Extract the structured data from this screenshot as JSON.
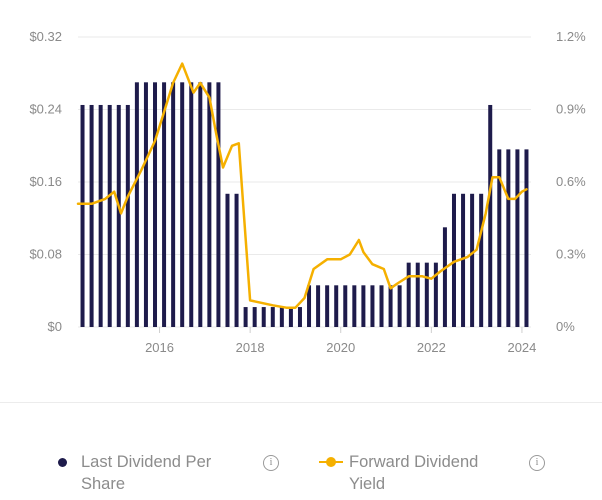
{
  "chart_data": {
    "type": "bar+line",
    "x_ticks": [
      "2016",
      "2018",
      "2020",
      "2022",
      "2024"
    ],
    "y_left_ticks": [
      "$0",
      "$0.08",
      "$0.16",
      "$0.24",
      "$0.32"
    ],
    "y_right_ticks": [
      "0%",
      "0.3%",
      "0.6%",
      "0.9%",
      "1.2%"
    ],
    "ylim_left": [
      0,
      0.32
    ],
    "ylim_right": [
      0,
      1.2
    ],
    "xlim": [
      2014.2,
      2024.2
    ],
    "grid": "horizontal",
    "legend_position": "bottom",
    "series": [
      {
        "name": "Last Dividend Per Share",
        "type": "bar",
        "color": "#1e1b4b",
        "x": [
          2014.3,
          2014.5,
          2014.7,
          2014.9,
          2015.1,
          2015.3,
          2015.5,
          2015.7,
          2015.9,
          2016.1,
          2016.3,
          2016.5,
          2016.7,
          2016.9,
          2017.1,
          2017.3,
          2017.5,
          2017.7,
          2017.9,
          2018.1,
          2018.3,
          2018.5,
          2018.7,
          2018.9,
          2019.1,
          2019.3,
          2019.5,
          2019.7,
          2019.9,
          2020.1,
          2020.3,
          2020.5,
          2020.7,
          2020.9,
          2021.1,
          2021.3,
          2021.5,
          2021.7,
          2021.9,
          2022.1,
          2022.3,
          2022.5,
          2022.7,
          2022.9,
          2023.1,
          2023.3,
          2023.5,
          2023.7,
          2023.9,
          2024.1
        ],
        "values": [
          0.245,
          0.245,
          0.245,
          0.245,
          0.245,
          0.245,
          0.27,
          0.27,
          0.27,
          0.27,
          0.27,
          0.27,
          0.27,
          0.27,
          0.27,
          0.27,
          0.147,
          0.147,
          0.022,
          0.022,
          0.022,
          0.022,
          0.022,
          0.022,
          0.022,
          0.046,
          0.046,
          0.046,
          0.046,
          0.046,
          0.046,
          0.046,
          0.046,
          0.046,
          0.046,
          0.046,
          0.071,
          0.071,
          0.071,
          0.071,
          0.11,
          0.147,
          0.147,
          0.147,
          0.147,
          0.245,
          0.196,
          0.196,
          0.196,
          0.196
        ]
      },
      {
        "name": "Forward Dividend Yield",
        "type": "line",
        "color": "#f5b000",
        "x": [
          2014.2,
          2014.5,
          2014.8,
          2015.0,
          2015.15,
          2015.3,
          2015.6,
          2015.9,
          2016.1,
          2016.3,
          2016.5,
          2016.75,
          2016.9,
          2017.1,
          2017.25,
          2017.4,
          2017.6,
          2017.75,
          2017.85,
          2018.0,
          2018.5,
          2018.8,
          2019.0,
          2019.2,
          2019.4,
          2019.7,
          2020.0,
          2020.2,
          2020.4,
          2020.5,
          2020.7,
          2020.95,
          2021.1,
          2021.25,
          2021.5,
          2021.8,
          2022.0,
          2022.2,
          2022.5,
          2022.8,
          2023.0,
          2023.2,
          2023.35,
          2023.5,
          2023.7,
          2023.85,
          2024.0,
          2024.1
        ],
        "values": [
          0.51,
          0.51,
          0.53,
          0.56,
          0.47,
          0.54,
          0.65,
          0.77,
          0.89,
          1.01,
          1.09,
          0.97,
          1.01,
          0.95,
          0.8,
          0.66,
          0.75,
          0.76,
          0.5,
          0.11,
          0.09,
          0.08,
          0.08,
          0.12,
          0.24,
          0.28,
          0.28,
          0.3,
          0.36,
          0.31,
          0.26,
          0.24,
          0.16,
          0.18,
          0.21,
          0.21,
          0.2,
          0.23,
          0.27,
          0.29,
          0.32,
          0.47,
          0.62,
          0.62,
          0.53,
          0.53,
          0.56,
          0.57
        ]
      }
    ]
  },
  "legend": {
    "items": [
      {
        "line1": "Last Dividend Per",
        "line2": "Share",
        "info": "i"
      },
      {
        "line1": "Forward Dividend",
        "line2": "Yield",
        "info": "i"
      }
    ]
  }
}
